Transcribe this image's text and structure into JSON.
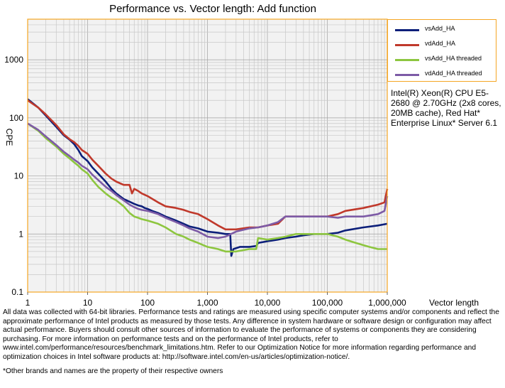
{
  "chart_data": {
    "type": "line",
    "title": "Performance vs. Vector length: Add function",
    "xlabel": "Vector length",
    "ylabel": "CPE",
    "x_scale": "log",
    "y_scale": "log",
    "xlim": [
      1,
      1000000
    ],
    "ylim": [
      0.1,
      5000
    ],
    "x_ticks": [
      1,
      10,
      100,
      1000,
      10000,
      100000,
      1000000
    ],
    "x_tick_labels": [
      "1",
      "10",
      "100",
      "1,000",
      "10,000",
      "100,000",
      "1,000,000"
    ],
    "y_ticks": [
      0.1,
      1,
      10,
      100,
      1000
    ],
    "y_tick_labels": [
      "0.1",
      "1",
      "10",
      "100",
      "1000"
    ],
    "grid": true,
    "legend_position": "top-right outside",
    "series": [
      {
        "name": "vsAdd_HA",
        "color": "#0c1f7a",
        "points": [
          [
            1,
            210
          ],
          [
            1.5,
            150
          ],
          [
            2,
            110
          ],
          [
            3,
            70
          ],
          [
            4,
            50
          ],
          [
            5,
            42
          ],
          [
            6,
            35
          ],
          [
            7,
            28
          ],
          [
            8,
            22
          ],
          [
            10,
            18
          ],
          [
            12,
            14
          ],
          [
            15,
            11
          ],
          [
            20,
            8
          ],
          [
            25,
            6
          ],
          [
            30,
            5
          ],
          [
            40,
            4
          ],
          [
            50,
            3.6
          ],
          [
            60,
            3.3
          ],
          [
            70,
            3.1
          ],
          [
            80,
            3.0
          ],
          [
            90,
            2.8
          ],
          [
            100,
            2.7
          ],
          [
            120,
            2.5
          ],
          [
            150,
            2.3
          ],
          [
            200,
            2.0
          ],
          [
            300,
            1.7
          ],
          [
            400,
            1.5
          ],
          [
            500,
            1.35
          ],
          [
            700,
            1.25
          ],
          [
            1000,
            1.1
          ],
          [
            1500,
            1.05
          ],
          [
            2000,
            1.0
          ],
          [
            2400,
            1.0
          ],
          [
            2500,
            0.42
          ],
          [
            2700,
            0.55
          ],
          [
            3500,
            0.6
          ],
          [
            5000,
            0.6
          ],
          [
            6500,
            0.62
          ],
          [
            7000,
            0.7
          ],
          [
            10000,
            0.75
          ],
          [
            15000,
            0.8
          ],
          [
            20000,
            0.85
          ],
          [
            30000,
            0.9
          ],
          [
            40000,
            0.95
          ],
          [
            60000,
            1.0
          ],
          [
            100000,
            1.0
          ],
          [
            150000,
            1.05
          ],
          [
            200000,
            1.15
          ],
          [
            400000,
            1.3
          ],
          [
            700000,
            1.4
          ],
          [
            1000000,
            1.5
          ]
        ]
      },
      {
        "name": "vdAdd_HA",
        "color": "#c0392b",
        "points": [
          [
            1,
            200
          ],
          [
            1.5,
            150
          ],
          [
            2,
            115
          ],
          [
            3,
            75
          ],
          [
            4,
            52
          ],
          [
            5,
            43
          ],
          [
            6,
            38
          ],
          [
            7,
            33
          ],
          [
            8,
            28
          ],
          [
            10,
            24
          ],
          [
            12,
            19
          ],
          [
            15,
            15
          ],
          [
            20,
            11
          ],
          [
            25,
            9
          ],
          [
            30,
            8
          ],
          [
            40,
            7
          ],
          [
            50,
            7
          ],
          [
            55,
            5
          ],
          [
            60,
            6
          ],
          [
            70,
            5.5
          ],
          [
            80,
            5
          ],
          [
            100,
            4.5
          ],
          [
            150,
            3.5
          ],
          [
            200,
            3.0
          ],
          [
            300,
            2.8
          ],
          [
            400,
            2.6
          ],
          [
            500,
            2.4
          ],
          [
            700,
            2.2
          ],
          [
            1000,
            1.8
          ],
          [
            1500,
            1.4
          ],
          [
            2000,
            1.2
          ],
          [
            3000,
            1.2
          ],
          [
            5000,
            1.3
          ],
          [
            7000,
            1.3
          ],
          [
            10000,
            1.4
          ],
          [
            15000,
            1.5
          ],
          [
            20000,
            2.0
          ],
          [
            30000,
            2.0
          ],
          [
            50000,
            2.0
          ],
          [
            100000,
            2.0
          ],
          [
            150000,
            2.2
          ],
          [
            200000,
            2.5
          ],
          [
            400000,
            2.8
          ],
          [
            700000,
            3.2
          ],
          [
            900000,
            3.5
          ],
          [
            1000000,
            6.0
          ]
        ]
      },
      {
        "name": "vsAdd_HA threaded",
        "color": "#8dc63f",
        "points": [
          [
            1,
            80
          ],
          [
            1.5,
            60
          ],
          [
            2,
            45
          ],
          [
            3,
            32
          ],
          [
            4,
            24
          ],
          [
            5,
            20
          ],
          [
            6,
            17
          ],
          [
            7,
            15
          ],
          [
            8,
            13
          ],
          [
            10,
            11
          ],
          [
            12,
            8.5
          ],
          [
            15,
            6.5
          ],
          [
            20,
            5
          ],
          [
            25,
            4.2
          ],
          [
            30,
            3.8
          ],
          [
            40,
            3.0
          ],
          [
            50,
            2.3
          ],
          [
            60,
            2.0
          ],
          [
            70,
            1.9
          ],
          [
            80,
            1.8
          ],
          [
            100,
            1.7
          ],
          [
            150,
            1.5
          ],
          [
            200,
            1.3
          ],
          [
            300,
            1.0
          ],
          [
            400,
            0.9
          ],
          [
            500,
            0.8
          ],
          [
            700,
            0.7
          ],
          [
            1000,
            0.6
          ],
          [
            1500,
            0.55
          ],
          [
            2000,
            0.5
          ],
          [
            3000,
            0.5
          ],
          [
            5000,
            0.55
          ],
          [
            6500,
            0.55
          ],
          [
            7000,
            0.85
          ],
          [
            10000,
            0.8
          ],
          [
            15000,
            0.85
          ],
          [
            20000,
            0.9
          ],
          [
            30000,
            1.0
          ],
          [
            50000,
            1.0
          ],
          [
            100000,
            1.0
          ],
          [
            150000,
            0.9
          ],
          [
            200000,
            0.8
          ],
          [
            300000,
            0.7
          ],
          [
            500000,
            0.6
          ],
          [
            700000,
            0.55
          ],
          [
            1000000,
            0.55
          ]
        ]
      },
      {
        "name": "vdAdd_HA threaded",
        "color": "#7d5ba6",
        "points": [
          [
            1,
            80
          ],
          [
            1.5,
            62
          ],
          [
            2,
            48
          ],
          [
            3,
            34
          ],
          [
            4,
            26
          ],
          [
            5,
            22
          ],
          [
            6,
            19
          ],
          [
            7,
            17
          ],
          [
            8,
            15
          ],
          [
            10,
            13
          ],
          [
            12,
            10.5
          ],
          [
            15,
            8.5
          ],
          [
            20,
            6.5
          ],
          [
            25,
            5.5
          ],
          [
            30,
            4.7
          ],
          [
            40,
            3.8
          ],
          [
            50,
            3.2
          ],
          [
            60,
            2.9
          ],
          [
            70,
            2.7
          ],
          [
            80,
            2.6
          ],
          [
            100,
            2.5
          ],
          [
            150,
            2.2
          ],
          [
            200,
            1.9
          ],
          [
            300,
            1.6
          ],
          [
            400,
            1.4
          ],
          [
            500,
            1.25
          ],
          [
            700,
            1.1
          ],
          [
            1000,
            0.9
          ],
          [
            1500,
            0.85
          ],
          [
            2000,
            0.9
          ],
          [
            3000,
            1.1
          ],
          [
            5000,
            1.25
          ],
          [
            7000,
            1.3
          ],
          [
            10000,
            1.4
          ],
          [
            15000,
            1.6
          ],
          [
            20000,
            2.0
          ],
          [
            50000,
            2.0
          ],
          [
            100000,
            2.0
          ],
          [
            150000,
            1.9
          ],
          [
            200000,
            2.0
          ],
          [
            400000,
            2.0
          ],
          [
            700000,
            2.2
          ],
          [
            900000,
            2.5
          ],
          [
            1000000,
            4.5
          ]
        ]
      }
    ]
  },
  "legend": {
    "items": [
      {
        "label": "vsAdd_HA",
        "color": "#0c1f7a"
      },
      {
        "label": "vdAdd_HA",
        "color": "#c0392b"
      },
      {
        "label": "vsAdd_HA threaded",
        "color": "#8dc63f"
      },
      {
        "label": "vdAdd_HA threaded",
        "color": "#7d5ba6"
      }
    ]
  },
  "cpu_note": "Intel(R) Xeon(R) CPU E5-2680 @ 2.70GHz (2x8 cores, 20MB cache), Red Hat* Enterprise Linux* Server 6.1",
  "disclaimer": "All data was collected with 64-bit libraries. Performance tests and ratings are measured using specific computer systems and/or components and reflect the approximate performance of Intel products as measured by those tests. Any difference in system hardware or software design or configuration may affect actual performance. Buyers should consult other sources of information to evaluate the performance of systems or components they are considering purchasing. For more information on performance tests and on the performance of Intel products, refer to www.intel.com/performance/resources/benchmark_limitations.htm. Refer to our Optimization Notice for more information regarding performance and optimization choices in Intel software products at: http://software.intel.com/en-us/articles/optimization-notice/.",
  "footnote": "*Other brands and names are the property of their respective owners",
  "colors": {
    "plot_border": "#f5a623",
    "grid": "#c8c8c8",
    "plot_bg": "#f2f2f2"
  }
}
